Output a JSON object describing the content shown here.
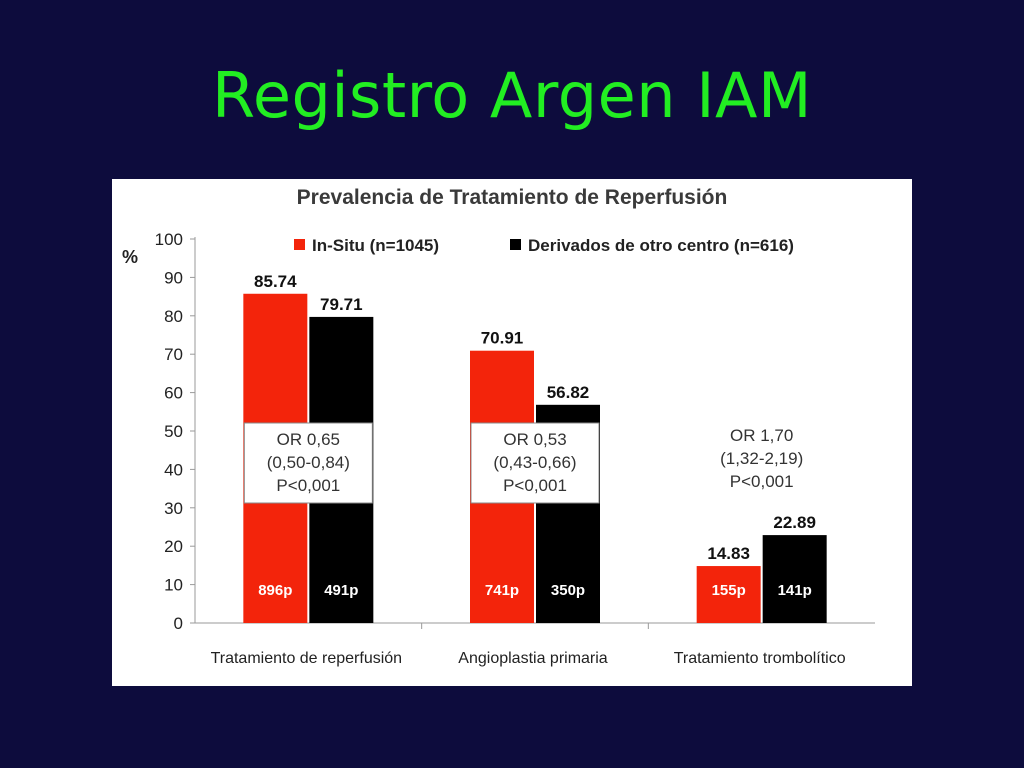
{
  "slide": {
    "title": "Registro Argen IAM"
  },
  "colors": {
    "background": "#0d0c3d",
    "title": "#22ee22",
    "series_in_situ": "#f3240b",
    "series_derivados": "#000000"
  },
  "chart_data": {
    "type": "bar",
    "title": "Prevalencia de Tratamiento de Reperfusión",
    "xlabel": "",
    "ylabel": "%",
    "ylim": [
      0,
      100
    ],
    "yticks": [
      0,
      10,
      20,
      30,
      40,
      50,
      60,
      70,
      80,
      90,
      100
    ],
    "categories": [
      "Tratamiento de reperfusión",
      "Angioplastia primaria",
      "Tratamiento trombolítico"
    ],
    "legend_position": "top",
    "grid": false,
    "series": [
      {
        "name": "In-Situ (n=1045)",
        "values": [
          85.74,
          70.91,
          14.83
        ],
        "value_labels": [
          "85.74",
          "70.91",
          "14.83"
        ],
        "count_labels": [
          "896p",
          "741p",
          "155p"
        ]
      },
      {
        "name": "Derivados de otro centro (n=616)",
        "values": [
          79.71,
          56.82,
          22.89
        ],
        "value_labels": [
          "79.71",
          "56.82",
          "22.89"
        ],
        "count_labels": [
          "491p",
          "350p",
          "141p"
        ]
      }
    ],
    "annotations": [
      {
        "lines": [
          "OR 0,65",
          "(0,50-0,84)",
          "P<0,001"
        ],
        "boxed": true
      },
      {
        "lines": [
          "OR 0,53",
          "(0,43-0,66)",
          "P<0,001"
        ],
        "boxed": true
      },
      {
        "lines": [
          "OR 1,70",
          "(1,32-2,19)",
          "P<0,001"
        ],
        "boxed": false
      }
    ]
  }
}
